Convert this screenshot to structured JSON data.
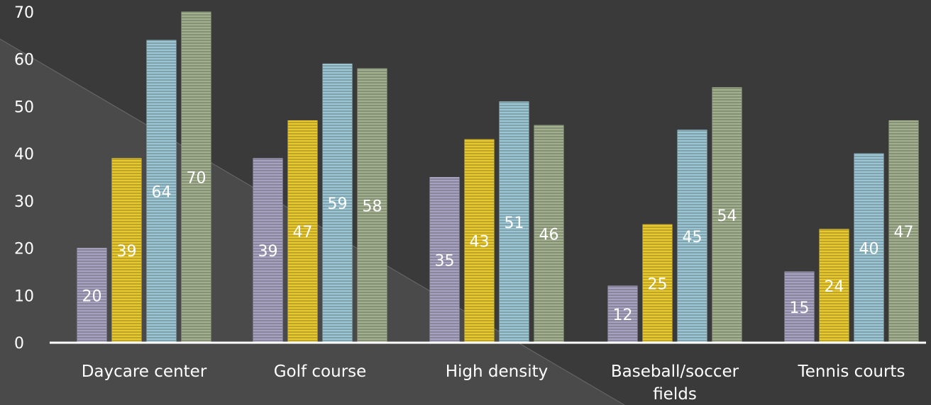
{
  "chart_data": {
    "type": "bar",
    "categories": [
      "Daycare center",
      "Golf course",
      "High density",
      "Baseball/soccer fields",
      "Tennis courts"
    ],
    "series": [
      {
        "values": [
          20,
          39,
          35,
          12,
          15
        ],
        "color": "#a6a2bf"
      },
      {
        "values": [
          39,
          47,
          43,
          25,
          24
        ],
        "color": "#e8c930"
      },
      {
        "values": [
          64,
          59,
          51,
          45,
          40
        ],
        "color": "#9cc6d3"
      },
      {
        "values": [
          70,
          58,
          46,
          54,
          47
        ],
        "color": "#a3b08f"
      }
    ],
    "ylim": [
      0,
      70
    ],
    "yticks": [
      0,
      10,
      20,
      30,
      40,
      50,
      60,
      70
    ],
    "data_labels": true,
    "grid": false,
    "legend": "none"
  },
  "colors": {
    "background": "#3a3a3a",
    "background_light": "#4a4a4a",
    "axis": "#ffffff",
    "text": "#ffffff"
  }
}
